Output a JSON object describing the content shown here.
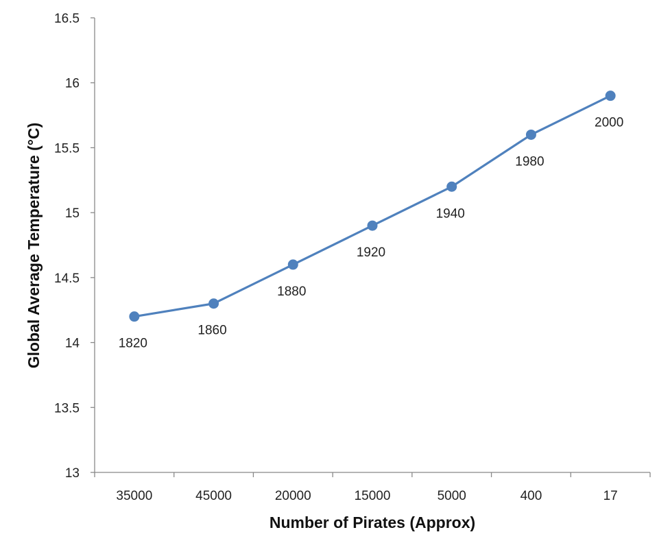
{
  "chart_data": {
    "type": "line",
    "categories": [
      "35000",
      "45000",
      "20000",
      "15000",
      "5000",
      "400",
      "17"
    ],
    "series": [
      {
        "values": [
          14.2,
          14.3,
          14.6,
          14.9,
          15.2,
          15.6,
          15.9
        ],
        "point_labels": [
          "1820",
          "1860",
          "1880",
          "1920",
          "1940",
          "1980",
          "2000"
        ],
        "color": "#4f81bd"
      }
    ],
    "title": "",
    "xlabel": "Number of Pirates (Approx)",
    "ylabel": "Global Average Temperature (°C)",
    "ylim": [
      13,
      16.5
    ],
    "yticks": [
      "13",
      "13.5",
      "14",
      "14.5",
      "15",
      "15.5",
      "16",
      "16.5"
    ],
    "grid": false,
    "legend": "none",
    "axis_color": "#888888"
  }
}
